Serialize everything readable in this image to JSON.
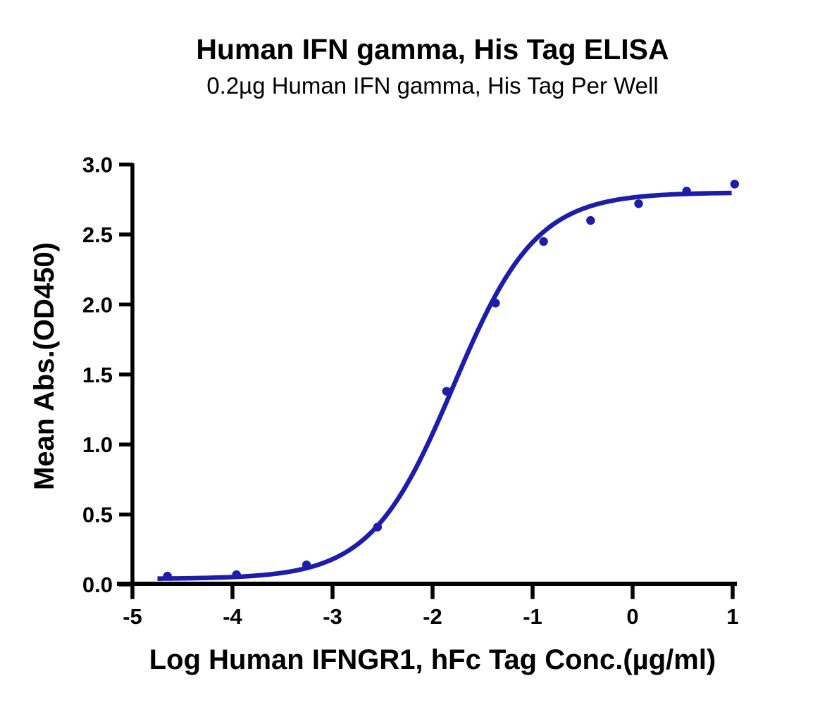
{
  "page": {
    "background_color": "#ffffff",
    "text_color": "#000000"
  },
  "chart": {
    "title": "Human IFN gamma, His Tag ELISA",
    "subtitle": "0.2µg Human IFN gamma, His Tag Per Well",
    "x_axis": {
      "label": "Log Human IFNGR1, hFc Tag Conc.(µg/ml)",
      "min": -5,
      "max": 1,
      "tick_values": [
        -5,
        -4,
        -3,
        -2,
        -1,
        0,
        1
      ],
      "tick_labels": [
        "-5",
        "-4",
        "-3",
        "-2",
        "-1",
        "0",
        "1"
      ]
    },
    "y_axis": {
      "label": "Mean Abs.(OD450)",
      "min": 0,
      "max": 3,
      "tick_values": [
        0,
        0.5,
        1,
        1.5,
        2,
        2.5,
        3
      ],
      "tick_labels": [
        "0.0",
        "0.5",
        "1.0",
        "1.5",
        "2.0",
        "2.5",
        "3.0"
      ]
    },
    "colors": {
      "series": "#1d1dac",
      "axis": "#000000",
      "text": "#000000"
    }
  },
  "chart_data": {
    "type": "scatter",
    "title": "Human IFN gamma, His Tag ELISA",
    "subtitle": "0.2µg Human IFN gamma, His Tag Per Well",
    "xlabel": "Log Human IFNGR1, hFc Tag Conc.(µg/ml)",
    "ylabel": "Mean Abs.(OD450)",
    "xlim": [
      -5,
      1
    ],
    "ylim": [
      0,
      3
    ],
    "grid": false,
    "legend": "none",
    "series": [
      {
        "name": "Human IFNGR1, hFc Tag",
        "marker": "circle",
        "color": "#1d1dac",
        "points": [
          [
            -4.65,
            0.06
          ],
          [
            -3.96,
            0.07
          ],
          [
            -3.26,
            0.14
          ],
          [
            -2.55,
            0.41
          ],
          [
            -1.86,
            1.38
          ],
          [
            -1.37,
            2.01
          ],
          [
            -0.89,
            2.45
          ],
          [
            -0.42,
            2.6
          ],
          [
            0.06,
            2.72
          ],
          [
            0.54,
            2.81
          ],
          [
            1.02,
            2.86
          ]
        ]
      }
    ],
    "fit_curve": {
      "model": "4PL-sigmoid",
      "bottom": 0.04,
      "top": 2.8,
      "log_ec50": -1.79,
      "hill_slope": 1.05,
      "x_range": [
        -4.75,
        1.0
      ],
      "color": "#1d1dac"
    }
  }
}
